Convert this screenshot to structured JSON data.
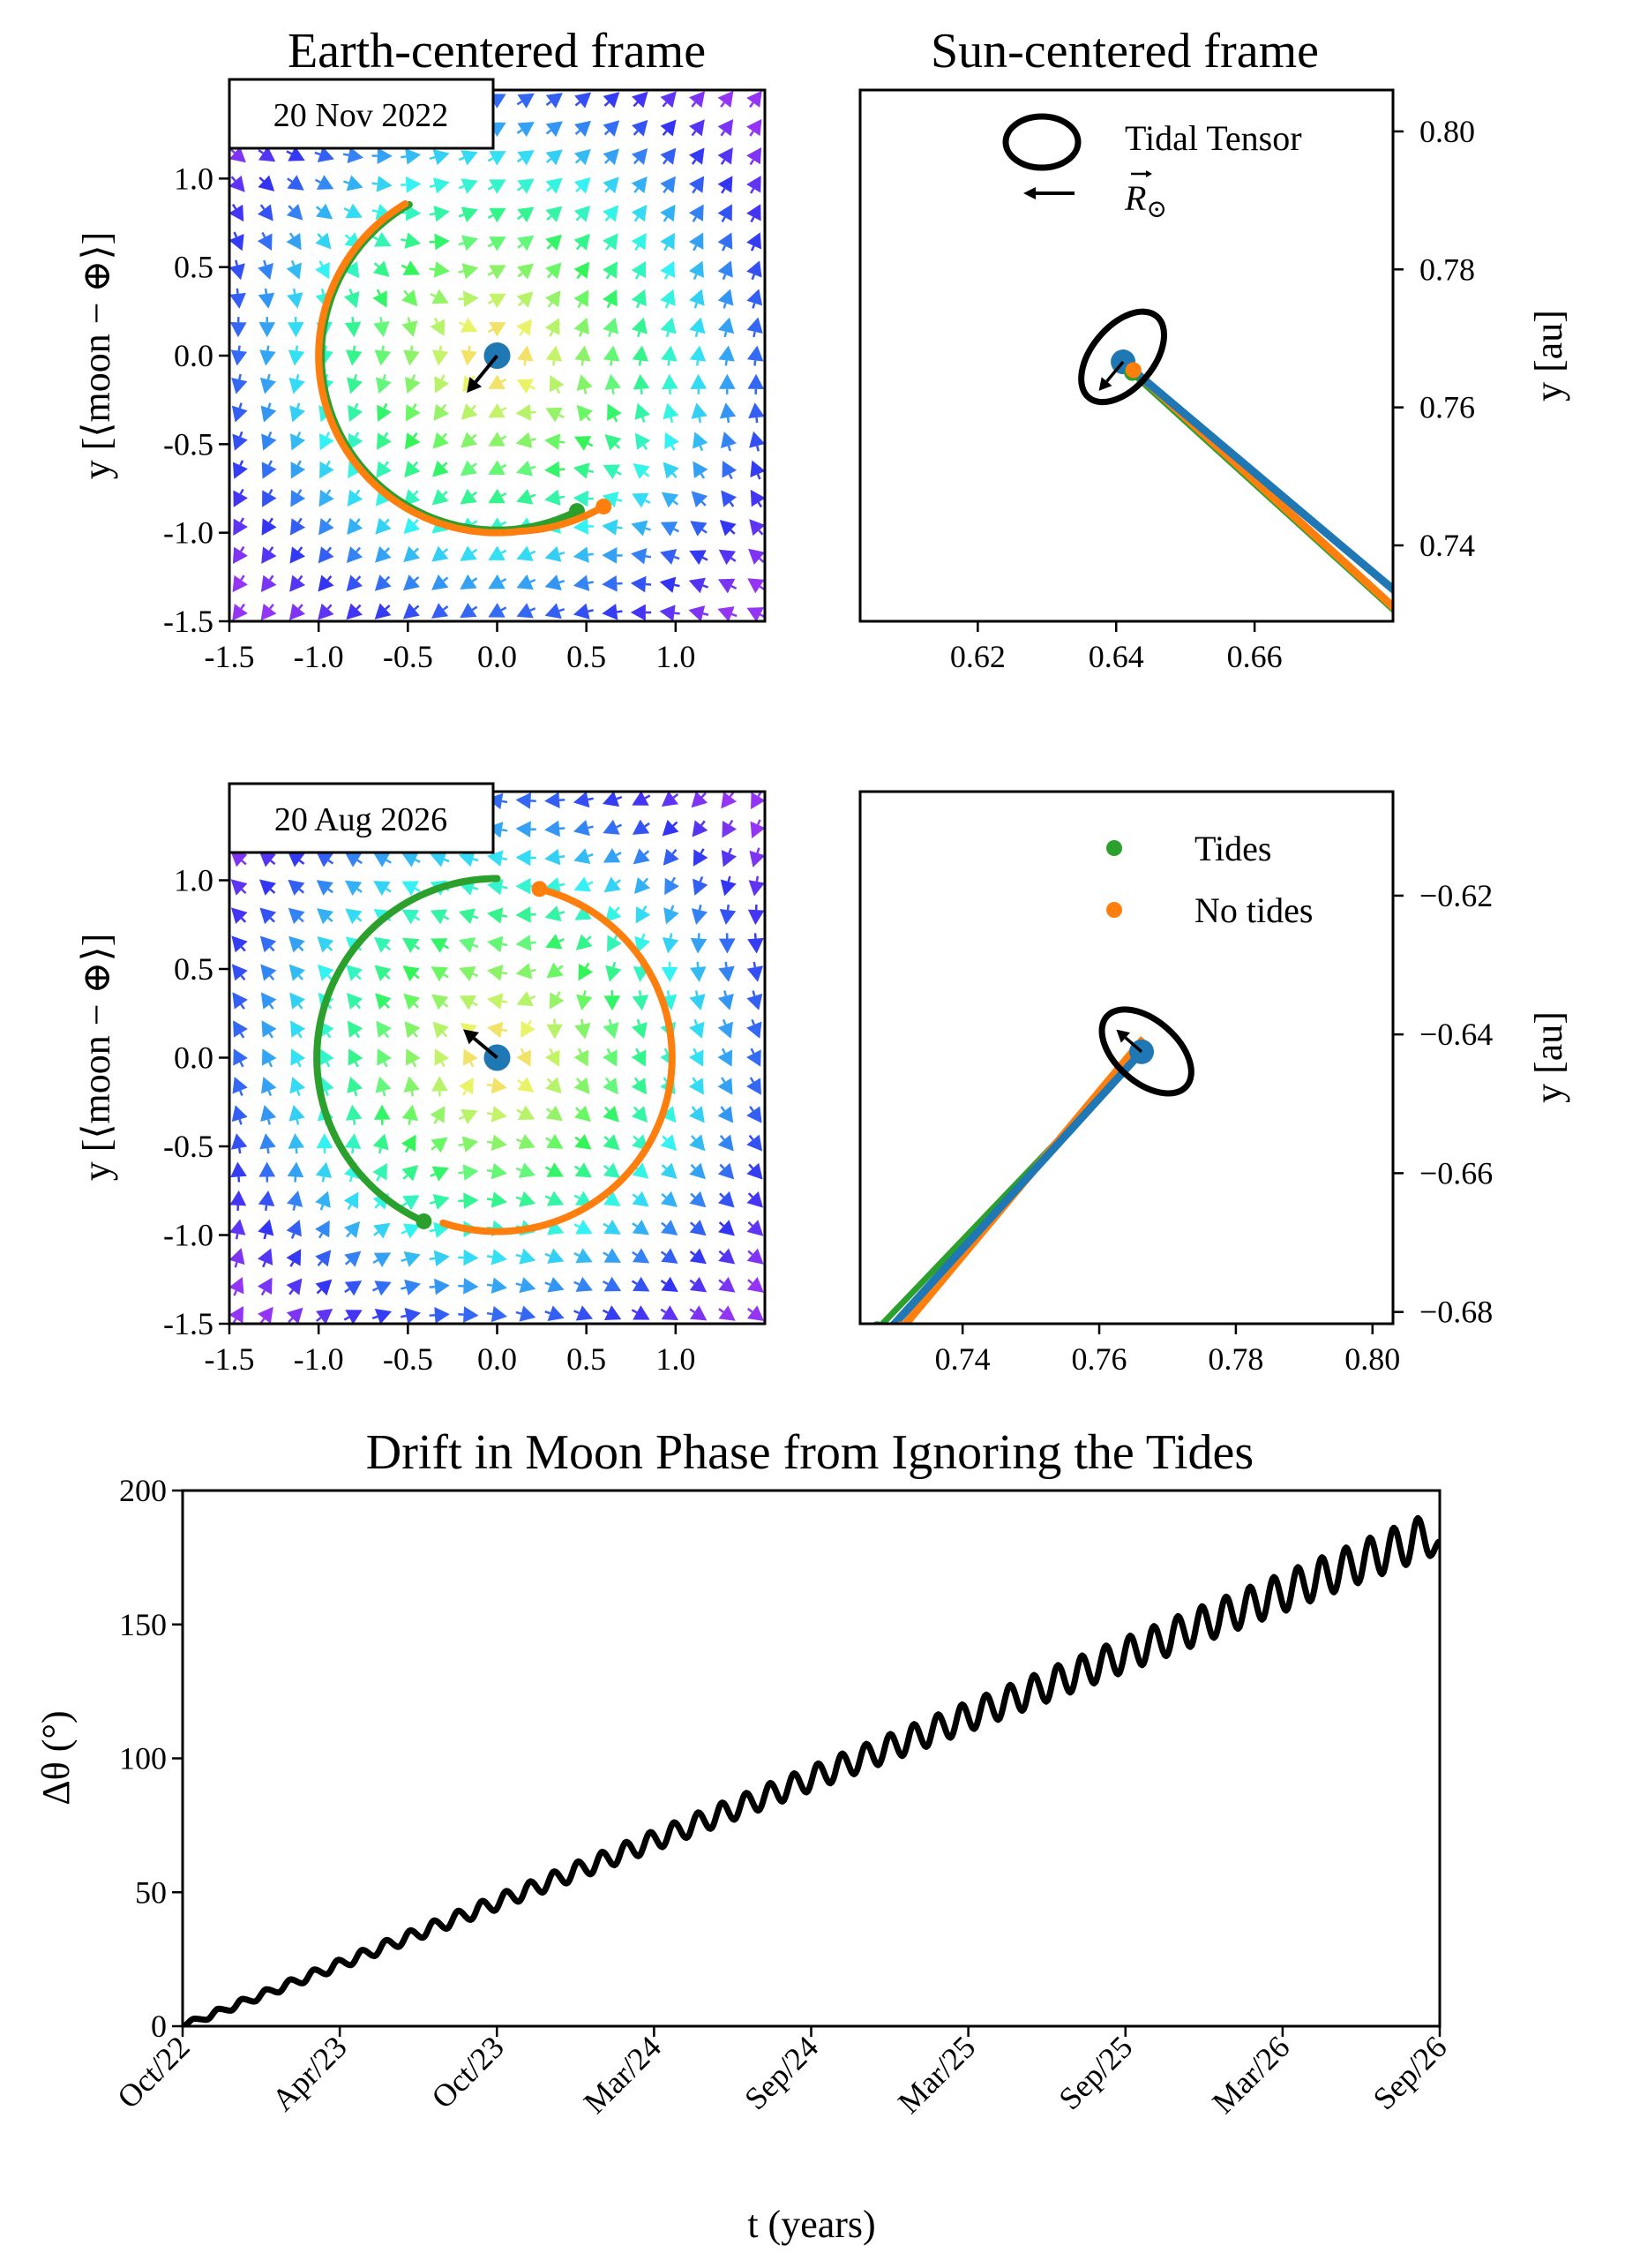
{
  "titles": {
    "earth_frame": "Earth-centered frame",
    "sun_frame": "Sun-centered frame",
    "drift": "Drift in Moon Phase from Ignoring the Tides"
  },
  "colors": {
    "earth": "#1f77b4",
    "tides": "#2ca02c",
    "no_tides": "#ff7f0e",
    "axes": "#000000",
    "quiver_colormap": "rainbow (reversed: small = red, large = violet)"
  },
  "legend": {
    "tidal_tensor": "Tidal Tensor",
    "sun_vector": {
      "symbol": "R",
      "subscript": "⊙"
    },
    "tides": "Tides",
    "no_tides": "No tides"
  },
  "chart_data": [
    {
      "type": "quiver",
      "panel": "earth-frame-2022",
      "date_label": "20 Nov 2022",
      "ylabel": "y [⟨moon − ⊕⟩]",
      "xlim": [
        -1.5,
        1.5
      ],
      "ylim": [
        -1.5,
        1.5
      ],
      "xticks": [
        {
          "v": -1.5,
          "label": "-1.5"
        },
        {
          "v": -1.0,
          "label": "-1.0"
        },
        {
          "v": -0.5,
          "label": "-0.5"
        },
        {
          "v": 0.0,
          "label": "0.0"
        },
        {
          "v": 0.5,
          "label": "0.5"
        },
        {
          "v": 1.0,
          "label": "1.0"
        }
      ],
      "yticks": [
        {
          "v": -1.5,
          "label": "-1.5"
        },
        {
          "v": -1.0,
          "label": "-1.0"
        },
        {
          "v": -0.5,
          "label": "-0.5"
        },
        {
          "v": 0.0,
          "label": "0.0"
        },
        {
          "v": 0.5,
          "label": "0.5"
        },
        {
          "v": 1.0,
          "label": "1.0"
        }
      ],
      "earth": [
        0,
        0
      ],
      "sun_direction_arrow": [
        -0.17,
        -0.21
      ],
      "trajectories": [
        {
          "name": "Tides",
          "color": "#2ca02c",
          "radius": 0.985,
          "arc_deg": [
            120,
            297
          ]
        },
        {
          "name": "No tides",
          "color": "#ff7f0e",
          "radius": 1.0,
          "arc_deg": [
            121,
            305
          ],
          "end_radius": 1.04
        }
      ]
    },
    {
      "type": "line",
      "panel": "sun-frame-2022",
      "ylabel": "y [au]",
      "xlim": [
        0.603,
        0.68
      ],
      "ylim": [
        0.729,
        0.806
      ],
      "xticks": [
        {
          "v": 0.62,
          "label": "0.62"
        },
        {
          "v": 0.64,
          "label": "0.64"
        },
        {
          "v": 0.66,
          "label": "0.66"
        }
      ],
      "yticks": [
        {
          "v": 0.74,
          "label": "0.74"
        },
        {
          "v": 0.76,
          "label": "0.76"
        },
        {
          "v": 0.78,
          "label": "0.78"
        },
        {
          "v": 0.8,
          "label": "0.80"
        }
      ],
      "earth": [
        0.641,
        0.7666
      ],
      "sun_direction_arrow": [
        -0.0035,
        -0.0042
      ],
      "series": [
        {
          "name": "Earth",
          "color": "#1f77b4",
          "points": [
            [
              0.641,
              0.7666
            ],
            [
              0.681,
              0.7328
            ]
          ]
        },
        {
          "name": "Tides",
          "color": "#2ca02c",
          "points": [
            [
              0.6423,
              0.765
            ],
            [
              0.681,
              0.7298
            ]
          ]
        },
        {
          "name": "No tides",
          "color": "#ff7f0e",
          "points": [
            [
              0.6425,
              0.7654
            ],
            [
              0.681,
              0.7302
            ]
          ]
        }
      ]
    },
    {
      "type": "quiver",
      "panel": "earth-frame-2026",
      "date_label": "20 Aug 2026",
      "ylabel": "y [⟨moon − ⊕⟩]",
      "xlim": [
        -1.5,
        1.5
      ],
      "ylim": [
        -1.5,
        1.5
      ],
      "xticks": [
        {
          "v": -1.5,
          "label": "-1.5"
        },
        {
          "v": -1.0,
          "label": "-1.0"
        },
        {
          "v": -0.5,
          "label": "-0.5"
        },
        {
          "v": 0.0,
          "label": "0.0"
        },
        {
          "v": 0.5,
          "label": "0.5"
        },
        {
          "v": 1.0,
          "label": "1.0"
        }
      ],
      "yticks": [
        {
          "v": -1.5,
          "label": "-1.5"
        },
        {
          "v": -1.0,
          "label": "-1.0"
        },
        {
          "v": -0.5,
          "label": "-0.5"
        },
        {
          "v": 0.0,
          "label": "0.0"
        },
        {
          "v": 0.5,
          "label": "0.5"
        },
        {
          "v": 1.0,
          "label": "1.0"
        }
      ],
      "earth": [
        0,
        0
      ],
      "sun_direction_arrow": [
        -0.19,
        0.16
      ],
      "trajectories": [
        {
          "name": "Tides",
          "color": "#2ca02c",
          "radius": 1.01,
          "arc_deg": [
            90,
            246
          ]
        },
        {
          "name": "No tides",
          "color": "#ff7f0e",
          "radius": 0.98,
          "arc_deg": [
            -108,
            76
          ]
        }
      ]
    },
    {
      "type": "line",
      "panel": "sun-frame-2026",
      "ylabel": "y [au]",
      "xlim": [
        0.725,
        0.803
      ],
      "ylim": [
        -0.6817,
        -0.605
      ],
      "xticks": [
        {
          "v": 0.74,
          "label": "0.74"
        },
        {
          "v": 0.76,
          "label": "0.76"
        },
        {
          "v": 0.78,
          "label": "0.78"
        },
        {
          "v": 0.8,
          "label": "0.80"
        }
      ],
      "yticks": [
        {
          "v": -0.68,
          "label": "−0.68"
        },
        {
          "v": -0.66,
          "label": "−0.66"
        },
        {
          "v": -0.64,
          "label": "−0.64"
        },
        {
          "v": -0.62,
          "label": "−0.62"
        }
      ],
      "earth": [
        0.7662,
        -0.6425
      ],
      "sun_direction_arrow": [
        -0.0037,
        0.0032
      ],
      "series": [
        {
          "name": "Earth",
          "color": "#1f77b4",
          "points": [
            [
              0.7293,
              -0.6825
            ],
            [
              0.7662,
              -0.6425
            ]
          ]
        },
        {
          "name": "Tides",
          "color": "#2ca02c",
          "points": [
            [
              0.7275,
              -0.6825
            ],
            [
              0.7645,
              -0.6444
            ]
          ]
        },
        {
          "name": "No tides",
          "color": "#ff7f0e",
          "points": [
            [
              0.731,
              -0.6825
            ],
            [
              0.7665,
              -0.6406
            ]
          ]
        }
      ]
    },
    {
      "type": "line",
      "panel": "phase-drift",
      "title": "Drift in Moon Phase from Ignoring the Tides",
      "xlabel": "t (years)",
      "ylabel": "Δθ (°)",
      "xlim": [
        2022.8,
        2026.72
      ],
      "ylim": [
        0,
        200
      ],
      "grid": false,
      "yticks": [
        {
          "v": 0,
          "label": "0"
        },
        {
          "v": 50,
          "label": "50"
        },
        {
          "v": 100,
          "label": "100"
        },
        {
          "v": 150,
          "label": "150"
        },
        {
          "v": 200,
          "label": "200"
        }
      ],
      "xticks": [
        {
          "v": 2022.8,
          "label": "Oct/22"
        },
        {
          "v": 2023.29,
          "label": "Apr/23"
        },
        {
          "v": 2023.78,
          "label": "Oct/23"
        },
        {
          "v": 2024.27,
          "label": "Mar/24"
        },
        {
          "v": 2024.76,
          "label": "Sep/24"
        },
        {
          "v": 2025.25,
          "label": "Mar/25"
        },
        {
          "v": 2025.74,
          "label": "Sep/25"
        },
        {
          "v": 2026.23,
          "label": "Mar/26"
        },
        {
          "v": 2026.72,
          "label": "Sep/26"
        }
      ],
      "series": [
        {
          "color": "#000000",
          "x": [
            2022.8,
            2022.837,
            2022.875,
            2022.912,
            2022.95,
            2022.987,
            2023.024,
            2023.062,
            2023.099,
            2023.137,
            2023.174,
            2023.211,
            2023.249,
            2023.286,
            2023.324,
            2023.361,
            2023.398,
            2023.436,
            2023.473,
            2023.511,
            2023.548,
            2023.585,
            2023.623,
            2023.66,
            2023.698,
            2023.735,
            2023.772,
            2023.81,
            2023.847,
            2023.885,
            2023.922,
            2023.959,
            2023.997,
            2024.034,
            2024.072,
            2024.109,
            2024.146,
            2024.184,
            2024.221,
            2024.259,
            2024.296,
            2024.333,
            2024.371,
            2024.408,
            2024.446,
            2024.483,
            2024.52,
            2024.558,
            2024.595,
            2024.633,
            2024.67,
            2024.707,
            2024.745,
            2024.782,
            2024.82,
            2024.857,
            2024.894,
            2024.932,
            2024.969,
            2025.007,
            2025.044,
            2025.081,
            2025.119,
            2025.156,
            2025.194,
            2025.231,
            2025.268,
            2025.306,
            2025.343,
            2025.381,
            2025.418,
            2025.455,
            2025.493,
            2025.53,
            2025.568,
            2025.605,
            2025.642,
            2025.68,
            2025.717,
            2025.755,
            2025.792,
            2025.829,
            2025.867,
            2025.904,
            2025.942,
            2025.979,
            2026.016,
            2026.054,
            2026.091,
            2026.129,
            2026.166,
            2026.203,
            2026.241,
            2026.278,
            2026.316,
            2026.353,
            2026.39,
            2026.428,
            2026.465,
            2026.503,
            2026.54,
            2026.577,
            2026.615,
            2026.652,
            2026.69,
            2026.72
          ],
          "y": [
            0,
            2.8,
            2.4,
            6.5,
            5.8,
            10.2,
            9.2,
            13.8,
            12.6,
            17.5,
            16.0,
            21.2,
            19.4,
            24.8,
            22.8,
            28.5,
            26.2,
            32.2,
            29.6,
            35.8,
            33.0,
            39.5,
            36.4,
            43.1,
            39.7,
            46.8,
            43.1,
            50.5,
            46.5,
            54.1,
            49.9,
            57.8,
            53.3,
            61.5,
            56.7,
            65.1,
            60.1,
            68.8,
            63.5,
            72.5,
            66.9,
            76.1,
            70.3,
            79.8,
            73.7,
            83.5,
            77.1,
            87.1,
            80.5,
            90.8,
            83.9,
            94.4,
            87.3,
            98.1,
            90.7,
            101.8,
            94.1,
            105.4,
            97.5,
            109.1,
            100.9,
            112.8,
            104.3,
            116.4,
            107.7,
            120.1,
            111.0,
            123.8,
            114.4,
            127.4,
            117.8,
            131.1,
            121.2,
            134.8,
            124.6,
            138.4,
            128.0,
            142.1,
            131.4,
            145.8,
            134.8,
            149.4,
            138.2,
            153.1,
            141.6,
            156.8,
            145.0,
            160.4,
            148.4,
            164.1,
            151.8,
            167.7,
            155.2,
            171.4,
            158.6,
            175.1,
            162.0,
            178.7,
            165.4,
            182.4,
            168.8,
            186.1,
            172.2,
            189.7,
            175.6,
            181.0
          ]
        }
      ]
    }
  ]
}
